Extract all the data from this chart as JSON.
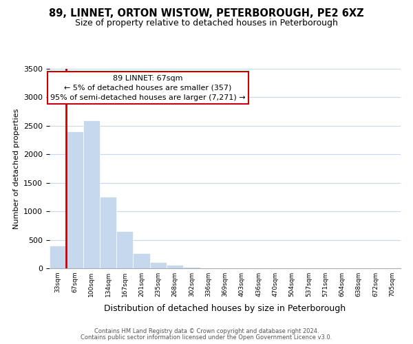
{
  "title": "89, LINNET, ORTON WISTOW, PETERBOROUGH, PE2 6XZ",
  "subtitle": "Size of property relative to detached houses in Peterborough",
  "xlabel": "Distribution of detached houses by size in Peterborough",
  "ylabel": "Number of detached properties",
  "bar_values": [
    400,
    2400,
    2600,
    1250,
    650,
    260,
    110,
    55,
    30,
    0,
    0,
    0,
    0,
    0,
    0,
    0,
    0,
    0,
    0,
    0,
    0
  ],
  "bin_labels": [
    "33sqm",
    "67sqm",
    "100sqm",
    "134sqm",
    "167sqm",
    "201sqm",
    "235sqm",
    "268sqm",
    "302sqm",
    "336sqm",
    "369sqm",
    "403sqm",
    "436sqm",
    "470sqm",
    "504sqm",
    "537sqm",
    "571sqm",
    "604sqm",
    "638sqm",
    "672sqm",
    "705sqm"
  ],
  "bar_color": "#c5d8ed",
  "highlight_bar_index": 1,
  "highlight_edge_color": "#cc0000",
  "annotation_line1": "89 LINNET: 67sqm",
  "annotation_line2": "← 5% of detached houses are smaller (357)",
  "annotation_line3": "95% of semi-detached houses are larger (7,271) →",
  "annotation_box_edge": "#cc0000",
  "ylim": [
    0,
    3500
  ],
  "yticks": [
    0,
    500,
    1000,
    1500,
    2000,
    2500,
    3000,
    3500
  ],
  "footer_line1": "Contains HM Land Registry data © Crown copyright and database right 2024.",
  "footer_line2": "Contains public sector information licensed under the Open Government Licence v3.0.",
  "bg_color": "#ffffff",
  "grid_color": "#c8d8e8",
  "title_fontsize": 10.5,
  "subtitle_fontsize": 9
}
